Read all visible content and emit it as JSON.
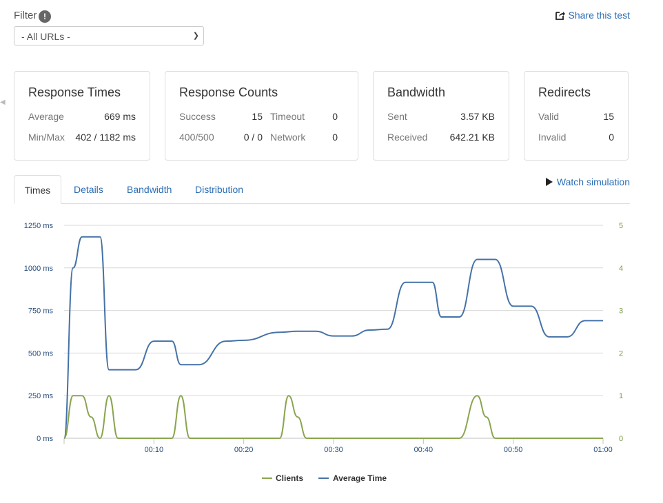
{
  "filter": {
    "label": "Filter",
    "info_icon": "!",
    "selected": "- All URLs -"
  },
  "share": {
    "label": "Share this test",
    "icon": "share-icon"
  },
  "cards": {
    "response_times": {
      "title": "Response Times",
      "average_label": "Average",
      "average_value": "669 ms",
      "minmax_label": "Min/Max",
      "minmax_value": "402 / 1182 ms"
    },
    "response_counts": {
      "title": "Response Counts",
      "success_label": "Success",
      "success_value": "15",
      "timeout_label": "Timeout",
      "timeout_value": "0",
      "err_label": "400/500",
      "err_value": "0 / 0",
      "network_label": "Network",
      "network_value": "0"
    },
    "bandwidth": {
      "title": "Bandwidth",
      "sent_label": "Sent",
      "sent_value": "3.57 KB",
      "received_label": "Received",
      "received_value": "642.21 KB"
    },
    "redirects": {
      "title": "Redirects",
      "valid_label": "Valid",
      "valid_value": "15",
      "invalid_label": "Invalid",
      "invalid_value": "0"
    }
  },
  "tabs": [
    "Times",
    "Details",
    "Bandwidth",
    "Distribution"
  ],
  "watch": {
    "label": "Watch simulation",
    "icon": "play-icon"
  },
  "chart_data": {
    "type": "line",
    "title": "",
    "left_ticks": [
      "1250 ms",
      "1000 ms",
      "750 ms",
      "500 ms",
      "250 ms",
      "0 ms"
    ],
    "right_ticks": [
      "5",
      "4",
      "3",
      "2",
      "1",
      "0"
    ],
    "x_ticks": [
      "00:10",
      "00:20",
      "00:30",
      "00:40",
      "00:50",
      "01:00"
    ],
    "xlim": [
      0,
      60
    ],
    "ylim_left": [
      0,
      1250
    ],
    "ylim_right": [
      0,
      5
    ],
    "colors": {
      "average": "#4572a7",
      "clients": "#89a54e"
    },
    "series": [
      {
        "name": "Average Time",
        "axis": "left",
        "color": "#4572a7",
        "points": [
          [
            0,
            0
          ],
          [
            1,
            1000
          ],
          [
            2,
            1182
          ],
          [
            4,
            1182
          ],
          [
            5,
            402
          ],
          [
            8,
            402
          ],
          [
            10,
            570
          ],
          [
            12,
            570
          ],
          [
            13,
            432
          ],
          [
            15,
            432
          ],
          [
            18,
            570
          ],
          [
            20,
            575
          ],
          [
            24,
            622
          ],
          [
            26,
            628
          ],
          [
            28,
            628
          ],
          [
            30,
            600
          ],
          [
            32,
            600
          ],
          [
            34,
            635
          ],
          [
            36,
            640
          ],
          [
            38,
            915
          ],
          [
            41,
            915
          ],
          [
            42,
            712
          ],
          [
            44,
            712
          ],
          [
            46,
            1050
          ],
          [
            48,
            1050
          ],
          [
            50,
            775
          ],
          [
            52,
            775
          ],
          [
            54,
            595
          ],
          [
            56,
            595
          ],
          [
            58,
            690
          ],
          [
            60,
            690
          ]
        ]
      },
      {
        "name": "Clients",
        "axis": "right",
        "color": "#89a54e",
        "points": [
          [
            0,
            0
          ],
          [
            1,
            1
          ],
          [
            2,
            1
          ],
          [
            3,
            0.5
          ],
          [
            4,
            0
          ],
          [
            5,
            1
          ],
          [
            6,
            0
          ],
          [
            12,
            0
          ],
          [
            13,
            1
          ],
          [
            14,
            0
          ],
          [
            24,
            0
          ],
          [
            25,
            1
          ],
          [
            26,
            0.5
          ],
          [
            27,
            0
          ],
          [
            44,
            0
          ],
          [
            46,
            1
          ],
          [
            47,
            0.5
          ],
          [
            48,
            0
          ],
          [
            60,
            0
          ]
        ]
      }
    ],
    "legend": [
      "Clients",
      "Average Time"
    ]
  }
}
